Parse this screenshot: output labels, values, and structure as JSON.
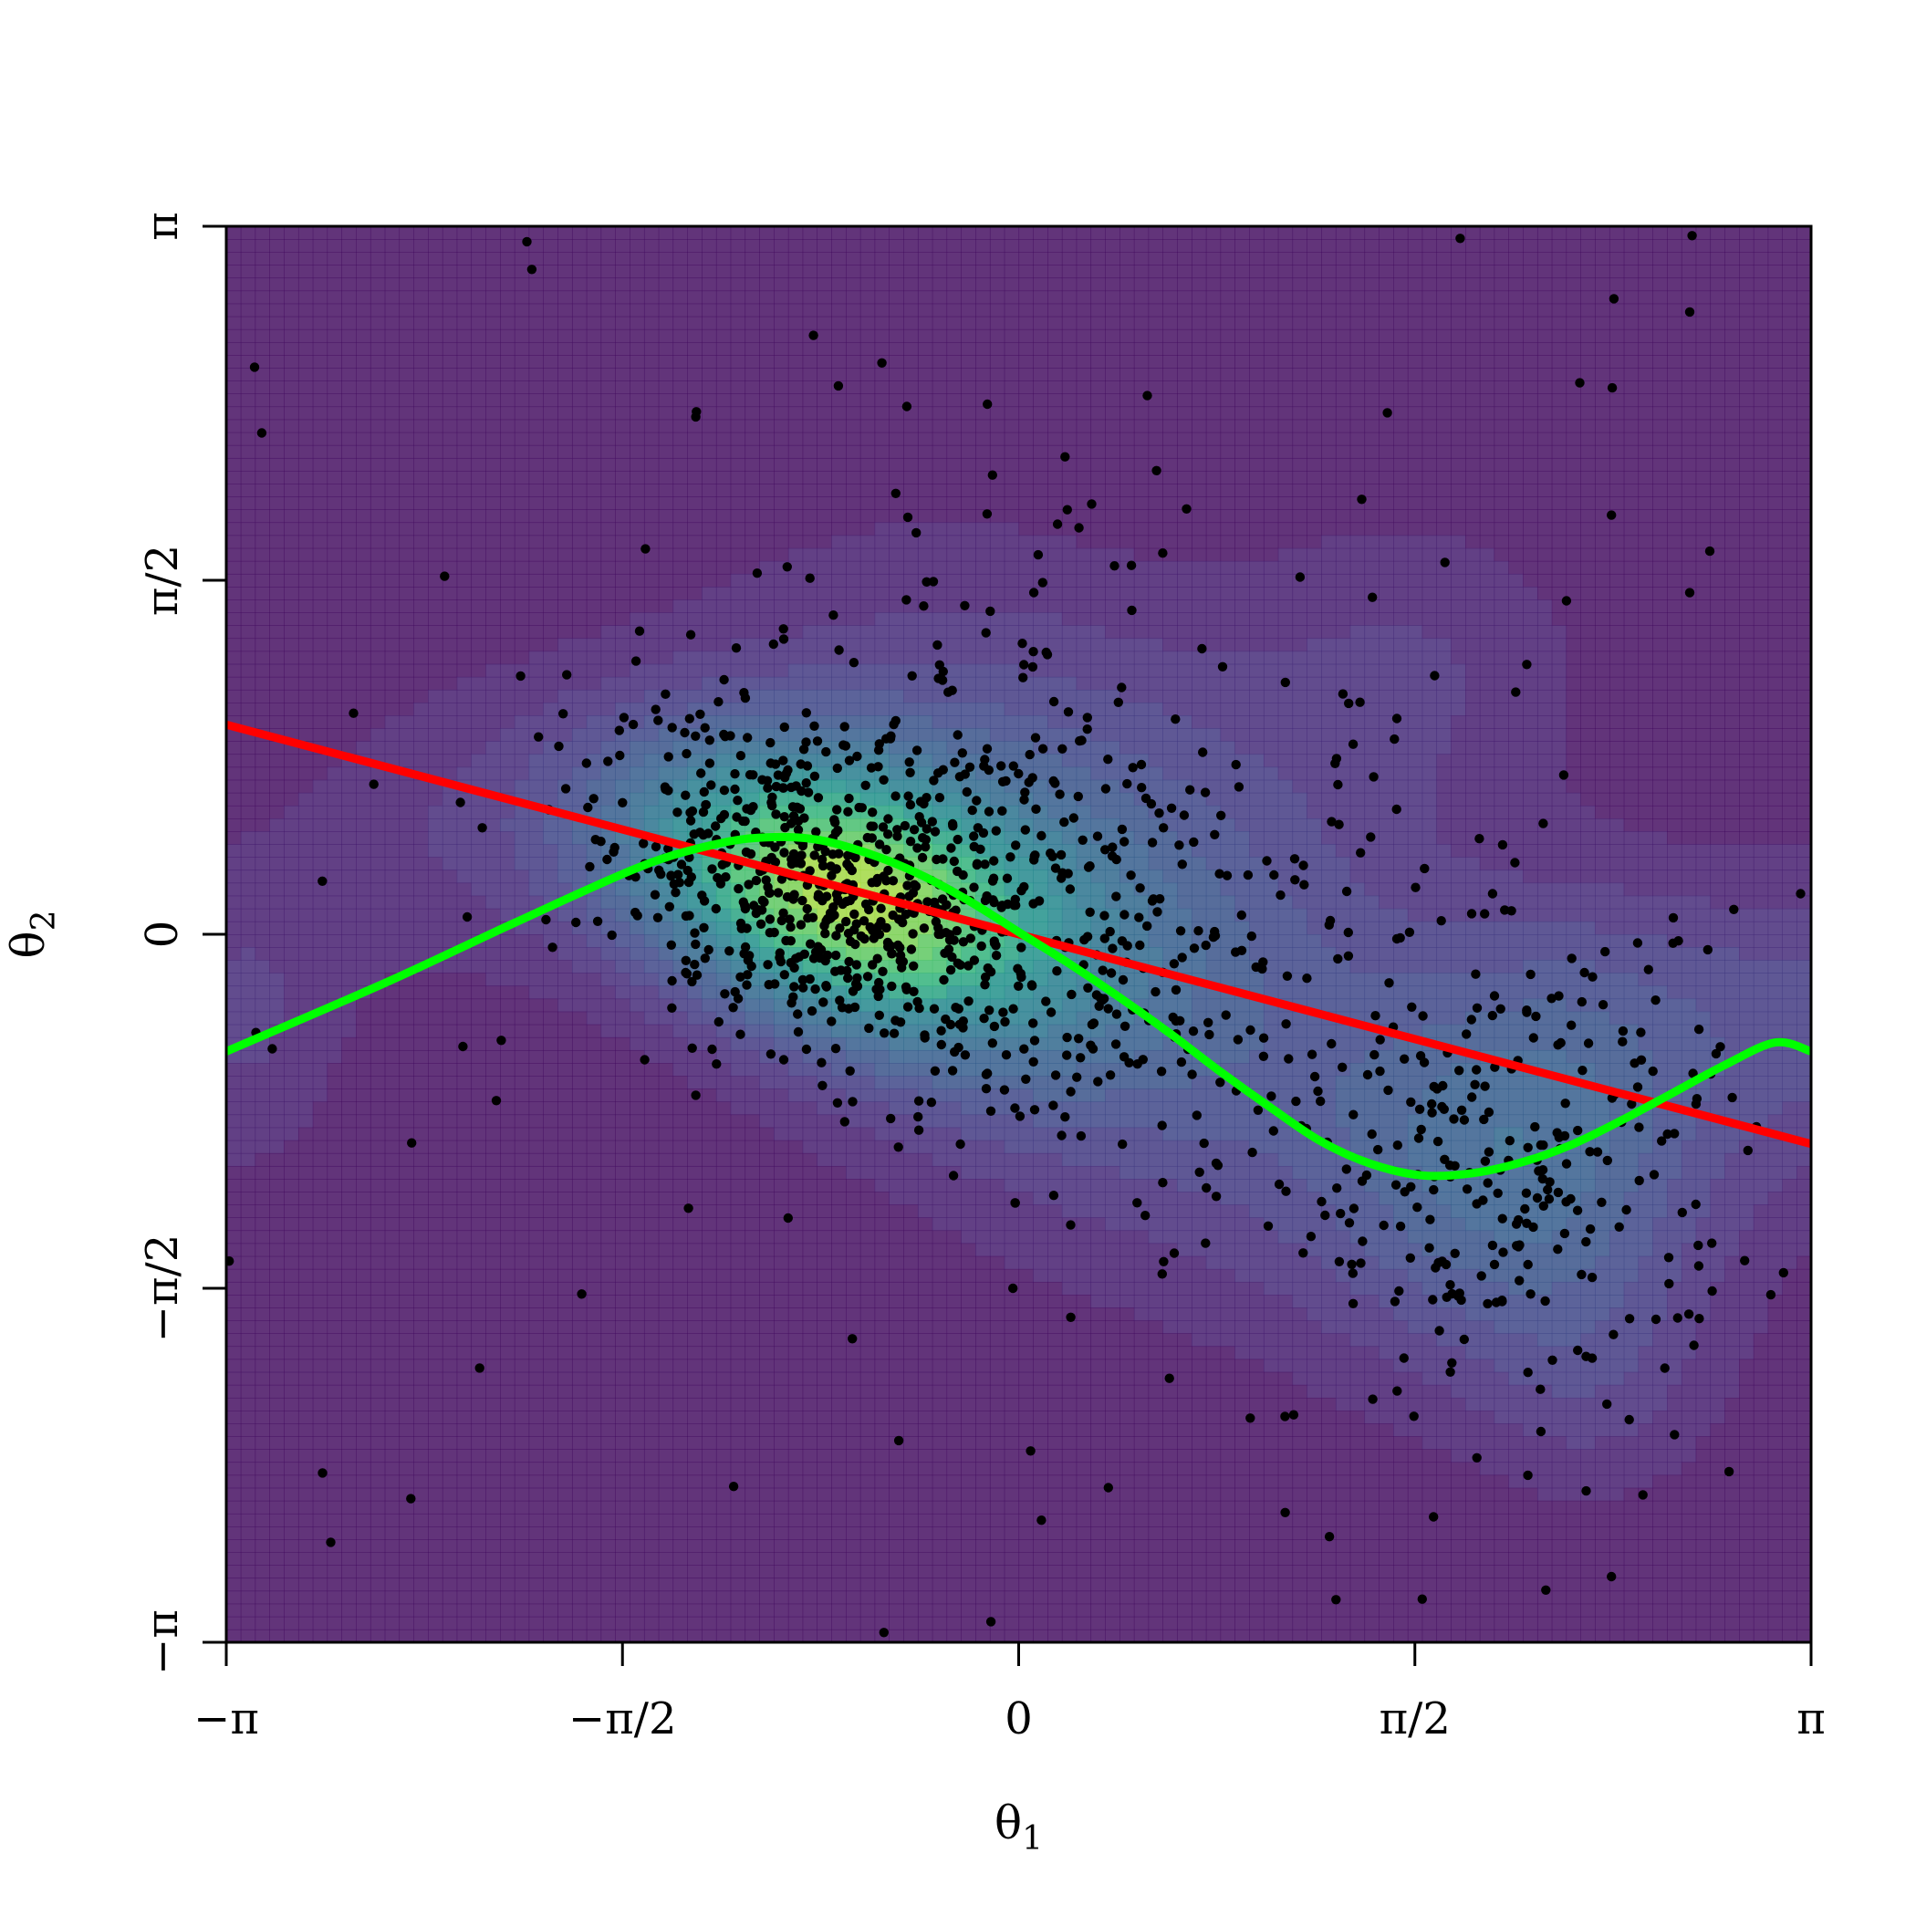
{
  "chart_data": {
    "type": "scatter",
    "title": "",
    "xlabel": "θ₁",
    "ylabel": "θ₂",
    "xlabel_parts": {
      "base": "θ",
      "sub": "1"
    },
    "ylabel_parts": {
      "base": "θ",
      "sub": "2"
    },
    "xlim": [
      -3.14159,
      3.14159
    ],
    "ylim": [
      -3.14159,
      3.14159
    ],
    "x_ticks": [
      {
        "value": -3.14159,
        "label": "−π"
      },
      {
        "value": -1.5708,
        "label": "−π/2"
      },
      {
        "value": 0,
        "label": "0"
      },
      {
        "value": 1.5708,
        "label": "π/2"
      },
      {
        "value": 3.14159,
        "label": "π"
      }
    ],
    "y_ticks": [
      {
        "value": -3.14159,
        "label": "−π"
      },
      {
        "value": -1.5708,
        "label": "−π/2"
      },
      {
        "value": 0,
        "label": "0"
      },
      {
        "value": 1.5708,
        "label": "π/2"
      },
      {
        "value": 3.14159,
        "label": "π"
      }
    ],
    "grid": false,
    "background": "filled density contours (viridis palette)",
    "density_components": [
      {
        "mx": -0.75,
        "my": 0.2,
        "sx": 0.6,
        "sy": 0.45,
        "rho": -0.35,
        "w": 1.0
      },
      {
        "mx": 0.3,
        "my": 0.05,
        "sx": 0.9,
        "sy": 0.95,
        "rho": -0.35,
        "w": 0.38
      },
      {
        "mx": 2.0,
        "my": -1.05,
        "sx": 0.55,
        "sy": 0.6,
        "rho": 0.0,
        "w": 0.38
      },
      {
        "mx": 2.5,
        "my": -0.3,
        "sx": 0.5,
        "sy": 0.45,
        "rho": 0.0,
        "w": 0.15
      },
      {
        "mx": 1.6,
        "my": 1.2,
        "sx": 0.5,
        "sy": 0.5,
        "rho": 0.0,
        "w": 0.12
      },
      {
        "mx": -2.3,
        "my": 0.4,
        "sx": 0.5,
        "sy": 0.5,
        "rho": 0.0,
        "w": 0.1
      },
      {
        "mx": -3.1,
        "my": -0.4,
        "sx": 0.3,
        "sy": 0.5,
        "rho": 0.0,
        "w": 0.14
      },
      {
        "mx": 3.2,
        "my": -0.4,
        "sx": 0.3,
        "sy": 0.5,
        "rho": 0.0,
        "w": 0.14
      },
      {
        "mx": 2.3,
        "my": -2.0,
        "sx": 0.35,
        "sy": 0.4,
        "rho": 0.0,
        "w": 0.1
      }
    ],
    "point_clusters": [
      {
        "mx": -0.75,
        "my": 0.2,
        "sx": 0.45,
        "sy": 0.38,
        "rho": -0.35,
        "n": 620
      },
      {
        "mx": 0.3,
        "my": 0.1,
        "sx": 0.75,
        "sy": 0.8,
        "rho": -0.35,
        "n": 380
      },
      {
        "mx": 2.0,
        "my": -1.05,
        "sx": 0.45,
        "sy": 0.55,
        "rho": 0.0,
        "n": 250
      },
      {
        "mx": 0.0,
        "my": 0.0,
        "sx": 2.2,
        "sy": 1.8,
        "rho": 0.0,
        "n": 120
      }
    ],
    "points": [
      {
        "x": -1.93,
        "y": 2.95
      },
      {
        "x": 2.36,
        "y": 2.82
      },
      {
        "x": 2.67,
        "y": 3.1
      },
      {
        "x": 0.51,
        "y": 2.39
      },
      {
        "x": -1.48,
        "y": 1.71
      },
      {
        "x": 1.36,
        "y": 1.93
      },
      {
        "x": 2.35,
        "y": 1.86
      },
      {
        "x": 2.74,
        "y": 1.7
      },
      {
        "x": 1.69,
        "y": 1.65
      },
      {
        "x": -2.76,
        "y": -2.39
      },
      {
        "x": -1.13,
        "y": -2.45
      },
      {
        "x": 0.09,
        "y": -2.6
      },
      {
        "x": 2.09,
        "y": -2.91
      },
      {
        "x": 2.35,
        "y": -2.85
      },
      {
        "x": 1.6,
        "y": -2.95
      },
      {
        "x": -0.11,
        "y": -3.05
      },
      {
        "x": 2.25,
        "y": -2.47
      },
      {
        "x": 2.6,
        "y": -2.22
      },
      {
        "x": -3.13,
        "y": -1.45
      },
      {
        "x": 3.1,
        "y": 0.18
      }
    ],
    "series": [
      {
        "name": "",
        "type": "line",
        "color": "#ff0000",
        "x": [
          -3.14159,
          3.14159
        ],
        "y": [
          0.93,
          -0.93
        ]
      },
      {
        "name": "",
        "type": "curve",
        "color": "#00ff00",
        "x": [
          -3.14159,
          -2.5,
          -2.0,
          -1.5,
          -1.2,
          -1.0,
          -0.8,
          -0.6,
          -0.4,
          -0.2,
          0.0,
          0.2,
          0.4,
          0.6,
          0.8,
          1.0,
          1.2,
          1.4,
          1.6,
          1.8,
          2.0,
          2.2,
          2.4,
          2.6,
          2.8,
          3.0,
          3.14159
        ],
        "y": [
          -0.52,
          -0.21,
          0.05,
          0.3,
          0.4,
          0.43,
          0.42,
          0.36,
          0.27,
          0.15,
          0.01,
          -0.13,
          -0.28,
          -0.44,
          -0.61,
          -0.77,
          -0.92,
          -1.02,
          -1.07,
          -1.06,
          -1.01,
          -0.93,
          -0.82,
          -0.7,
          -0.58,
          -0.48,
          -0.52
        ]
      }
    ]
  }
}
